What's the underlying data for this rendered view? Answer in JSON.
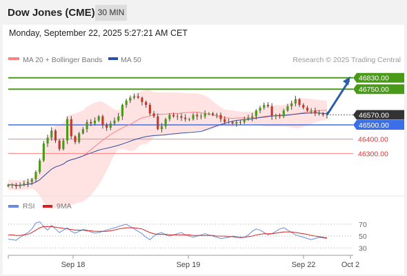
{
  "header": {
    "title": "Dow Jones (CME)",
    "timeframe": "30 MIN"
  },
  "datetime": "Monday, September 22, 2025 5:27:21 AM CET",
  "legend": {
    "ma20": "MA 20 + Bollinger Bands",
    "ma50": "MA 50",
    "copyright": "Research © 2025 Trading Central",
    "rsi": "RSI",
    "rsi_ma": "9MA"
  },
  "colors": {
    "green": "#4a9a1a",
    "blue": "#3a6fe8",
    "red": "#ff8080",
    "ma50": "#2a4fa8",
    "band": "#ffd6d6",
    "candle_up": "#4a9a1a",
    "candle_down": "#c0392b",
    "rsi_line": "#6a8ae0",
    "rsi_ma_line": "#d62020",
    "arrow": "#2a5daa"
  },
  "chart_data": [
    {
      "type": "candlestick",
      "x_labels": [
        "Sep 18",
        "Sep 19",
        "Sep 22",
        "Oct 2"
      ],
      "ylim": [
        46060,
        46930
      ],
      "levels": [
        {
          "value": 46830,
          "label": "46830.00",
          "kind": "resistance"
        },
        {
          "value": 46750,
          "label": "46750.00",
          "kind": "resistance"
        },
        {
          "value": 46570,
          "label": "46570.00",
          "kind": "last"
        },
        {
          "value": 46500,
          "label": "46500.00",
          "kind": "pivot"
        },
        {
          "value": 46400,
          "label": "46400.00",
          "kind": "support"
        },
        {
          "value": 46300,
          "label": "46300.00",
          "kind": "support"
        }
      ],
      "close_path": [
        46080,
        46080,
        46070,
        46080,
        46090,
        46100,
        46120,
        46170,
        46250,
        46370,
        46410,
        46460,
        46390,
        46330,
        46390,
        46540,
        46420,
        46380,
        46440,
        46470,
        46520,
        46510,
        46530,
        46560,
        46500,
        46480,
        46510,
        46530,
        46560,
        46640,
        46670,
        46690,
        46700,
        46690,
        46660,
        46640,
        46580,
        46560,
        46470,
        46490,
        46540,
        46570,
        46560,
        46560,
        46550,
        46540,
        46540,
        46570,
        46560,
        46560,
        46580,
        46580,
        46570,
        46570,
        46540,
        46520,
        46520,
        46510,
        46520,
        46520,
        46540,
        46550,
        46560,
        46600,
        46620,
        46640,
        46630,
        46560,
        46570,
        46560,
        46600,
        46630,
        46650,
        46680,
        46640,
        46620,
        46600,
        46600,
        46580,
        46580,
        46570,
        46580
      ],
      "arrow": {
        "from": 46570,
        "to": 46830
      }
    },
    {
      "type": "line",
      "name": "RSI",
      "ylim": [
        20,
        85
      ],
      "yticks": [
        30,
        50,
        70
      ],
      "series": [
        {
          "name": "RSI",
          "values": [
            45,
            44,
            43,
            48,
            52,
            56,
            62,
            72,
            74,
            66,
            60,
            68,
            62,
            56,
            60,
            64,
            58,
            55,
            58,
            61,
            60,
            57,
            55,
            56,
            58,
            60,
            62,
            64,
            66,
            68,
            70,
            66,
            62,
            58,
            54,
            48,
            44,
            50,
            54,
            56,
            52,
            50,
            52,
            54,
            56,
            52,
            50,
            48,
            50,
            52,
            54,
            52,
            50,
            48,
            46,
            47,
            48,
            50,
            49,
            47,
            48,
            52,
            58,
            62,
            60,
            56,
            52,
            54,
            58,
            62,
            64,
            60,
            56,
            52,
            50,
            48,
            46,
            44,
            46,
            48,
            47,
            46
          ]
        },
        {
          "name": "9MA",
          "values": [
            52,
            52,
            51,
            51,
            52,
            53,
            56,
            60,
            64,
            66,
            66,
            66,
            65,
            64,
            63,
            62,
            61,
            60,
            60,
            60,
            59,
            59,
            58,
            58,
            58,
            58,
            59,
            60,
            62,
            63,
            64,
            64,
            64,
            63,
            62,
            59,
            56,
            54,
            53,
            53,
            53,
            52,
            52,
            52,
            52,
            52,
            52,
            51,
            51,
            51,
            51,
            51,
            51,
            50,
            50,
            50,
            49,
            49,
            48,
            48,
            48,
            49,
            50,
            52,
            53,
            54,
            54,
            54,
            55,
            56,
            57,
            57,
            57,
            56,
            55,
            54,
            53,
            51,
            50,
            49,
            48,
            47
          ]
        }
      ]
    }
  ]
}
